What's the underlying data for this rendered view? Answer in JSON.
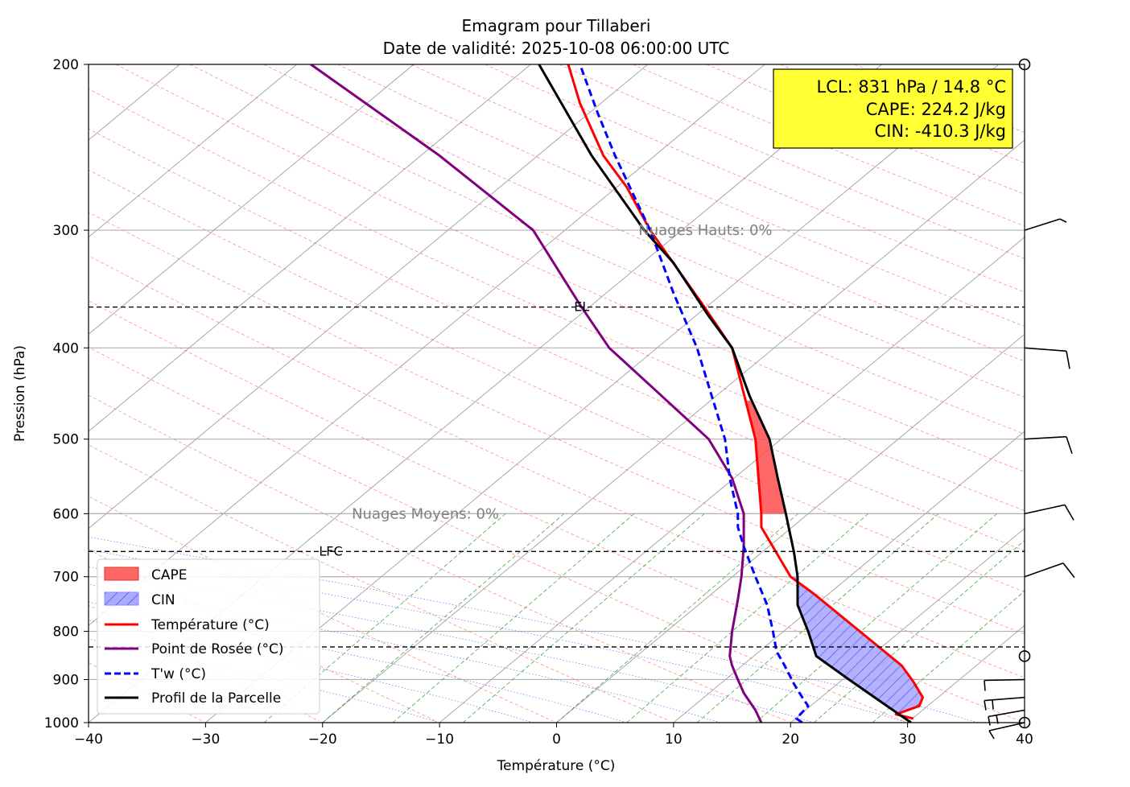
{
  "chart_data": {
    "type": "line",
    "title": "Emagram pour Tillaberi",
    "subtitle": "Date de validité: 2025-10-08 06:00:00 UTC",
    "xlabel": "Température (°C)",
    "ylabel": "Pression (hPa)",
    "xlim": [
      -40,
      40
    ],
    "ylim": [
      1000,
      200
    ],
    "y_scale": "log",
    "x_ticks": [
      -40,
      -30,
      -20,
      -10,
      0,
      10,
      20,
      30,
      40
    ],
    "x_tick_labels": [
      "−40",
      "−30",
      "−20",
      "−10",
      "0",
      "10",
      "20",
      "30",
      "40"
    ],
    "y_ticks": [
      1000,
      900,
      800,
      700,
      600,
      500,
      400,
      300,
      200
    ],
    "grid": true,
    "legend_position": "bottom-left",
    "info_box": {
      "lines": [
        "LCL: 831 hPa / 14.8 °C",
        "CAPE: 224.2 J/kg",
        "CIN: -410.3 J/kg"
      ],
      "background": "#ffff33"
    },
    "levels": [
      {
        "name": "EL",
        "pressure": 362,
        "label": "EL"
      },
      {
        "name": "LFC",
        "pressure": 658,
        "label": "LFC"
      },
      {
        "name": "LCL",
        "pressure": 831,
        "label": ""
      }
    ],
    "cloud_labels": [
      {
        "text": "Nuages Hauts: 0%",
        "pressure": 300,
        "temp": 7
      },
      {
        "text": "Nuages Moyens: 0%",
        "pressure": 600,
        "temp": -17.5
      }
    ],
    "series": [
      {
        "name": "Température (°C)",
        "color": "#ff0000",
        "style": "solid",
        "points": [
          [
            30.5,
            990
          ],
          [
            29,
            980
          ],
          [
            31,
            960
          ],
          [
            31.3,
            940
          ],
          [
            30.5,
            905
          ],
          [
            29.5,
            870
          ],
          [
            22,
            730
          ],
          [
            20,
            700
          ],
          [
            17.5,
            620
          ],
          [
            17.5,
            600
          ],
          [
            17,
            500
          ],
          [
            15,
            400
          ],
          [
            12.5,
            360
          ],
          [
            8,
            300
          ],
          [
            6,
            270
          ],
          [
            4,
            250
          ],
          [
            2,
            220
          ],
          [
            1,
            200
          ]
        ]
      },
      {
        "name": "Point de Rosée (°C)",
        "color": "#800080",
        "style": "solid",
        "points": [
          [
            17.5,
            1000
          ],
          [
            17,
            970
          ],
          [
            16.5,
            950
          ],
          [
            16,
            930
          ],
          [
            15.5,
            900
          ],
          [
            15,
            870
          ],
          [
            14.8,
            850
          ],
          [
            15,
            800
          ],
          [
            15.5,
            740
          ],
          [
            15.8,
            700
          ],
          [
            16,
            650
          ],
          [
            16,
            600
          ],
          [
            15,
            550
          ],
          [
            13,
            500
          ],
          [
            9,
            450
          ],
          [
            4.5,
            400
          ],
          [
            2,
            360
          ],
          [
            -2,
            300
          ],
          [
            -10,
            250
          ],
          [
            -21,
            200
          ]
        ]
      },
      {
        "name": "T'w (°C)",
        "color": "#0000ff",
        "style": "dashed",
        "points": [
          [
            21,
            1000
          ],
          [
            20.5,
            990
          ],
          [
            21,
            975
          ],
          [
            21.5,
            960
          ],
          [
            21,
            940
          ],
          [
            20.3,
            910
          ],
          [
            19.5,
            870
          ],
          [
            18.8,
            840
          ],
          [
            18.5,
            800
          ],
          [
            18,
            750
          ],
          [
            17,
            700
          ],
          [
            16,
            650
          ],
          [
            15.5,
            620
          ],
          [
            15.5,
            600
          ],
          [
            14.8,
            550
          ],
          [
            14.4,
            500
          ],
          [
            12,
            400
          ],
          [
            10,
            350
          ],
          [
            8,
            300
          ],
          [
            5,
            250
          ],
          [
            3.5,
            225
          ],
          [
            2,
            200
          ]
        ]
      },
      {
        "name": "Profil de la Parcelle",
        "color": "#000000",
        "style": "solid",
        "points": [
          [
            30.3,
            1000
          ],
          [
            27.7,
            950
          ],
          [
            25,
            900
          ],
          [
            22.2,
            850
          ],
          [
            21.5,
            800
          ],
          [
            20.6,
            750
          ],
          [
            20.6,
            700
          ],
          [
            20.3,
            660
          ],
          [
            19.6,
            600
          ],
          [
            18.9,
            550
          ],
          [
            18.2,
            500
          ],
          [
            16.5,
            450
          ],
          [
            15,
            400
          ],
          [
            13,
            370
          ],
          [
            10,
            325
          ],
          [
            7.5,
            300
          ],
          [
            3,
            250
          ],
          [
            -1.5,
            200
          ]
        ]
      }
    ],
    "legend": [
      {
        "label": "CAPE",
        "kind": "patch",
        "color": "#ff6666"
      },
      {
        "label": "CIN",
        "kind": "patch-hatch",
        "color": "#aaaaff"
      },
      {
        "label": "Température (°C)",
        "kind": "line",
        "color": "#ff0000"
      },
      {
        "label": "Point de Rosée (°C)",
        "kind": "line",
        "color": "#800080"
      },
      {
        "label": "T'w (°C)",
        "kind": "dashed",
        "color": "#0000ff"
      },
      {
        "label": "Profil de la Parcelle",
        "kind": "line",
        "color": "#000000"
      }
    ],
    "wind_barbs": [
      {
        "pressure": 300
      },
      {
        "pressure": 400
      },
      {
        "pressure": 500
      },
      {
        "pressure": 600
      },
      {
        "pressure": 700
      },
      {
        "pressure": 900
      },
      {
        "pressure": 940
      },
      {
        "pressure": 970
      },
      {
        "pressure": 1000
      }
    ]
  }
}
